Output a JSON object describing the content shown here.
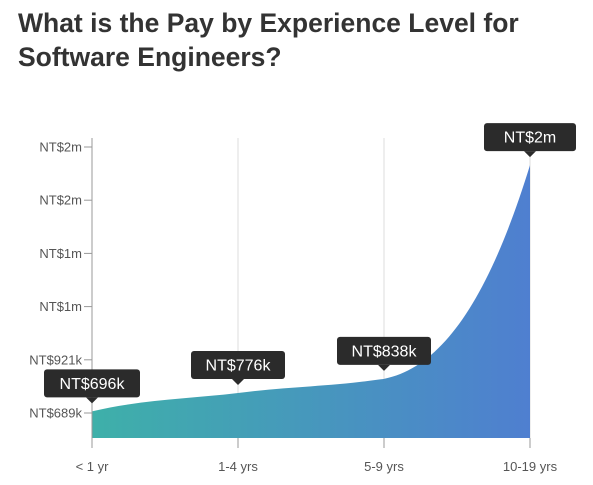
{
  "title": "What is the Pay by Experience Level for Software Engineers?",
  "chart_data": {
    "type": "area",
    "title": "What is the Pay by Experience Level for Software Engineers?",
    "xlabel": "",
    "ylabel": "",
    "categories": [
      "< 1 yr",
      "1-4 yrs",
      "5-9 yrs",
      "10-19 yrs"
    ],
    "values": [
      696000,
      776000,
      838000,
      1770000
    ],
    "data_labels": [
      "NT$696k",
      "NT$776k",
      "NT$838k",
      "NT$2m"
    ],
    "y_ticks": [
      {
        "value": 689000,
        "label": "NT$689k"
      },
      {
        "value": 921000,
        "label": "NT$921k"
      },
      {
        "value": 1153000,
        "label": "NT$1m"
      },
      {
        "value": 1385000,
        "label": "NT$1m"
      },
      {
        "value": 1617000,
        "label": "NT$2m"
      },
      {
        "value": 1849000,
        "label": "NT$2m"
      }
    ],
    "ylim": [
      689000,
      1849000
    ],
    "grid": "vertical",
    "colors": {
      "gradient_start": "#3eb0a9",
      "gradient_end": "#4f7fd0",
      "label_bg": "#2b2b2b",
      "label_text": "#ffffff",
      "grid": "#dddddd",
      "axis": "#999999",
      "tick_text": "#555555",
      "title_text": "#333333"
    }
  }
}
